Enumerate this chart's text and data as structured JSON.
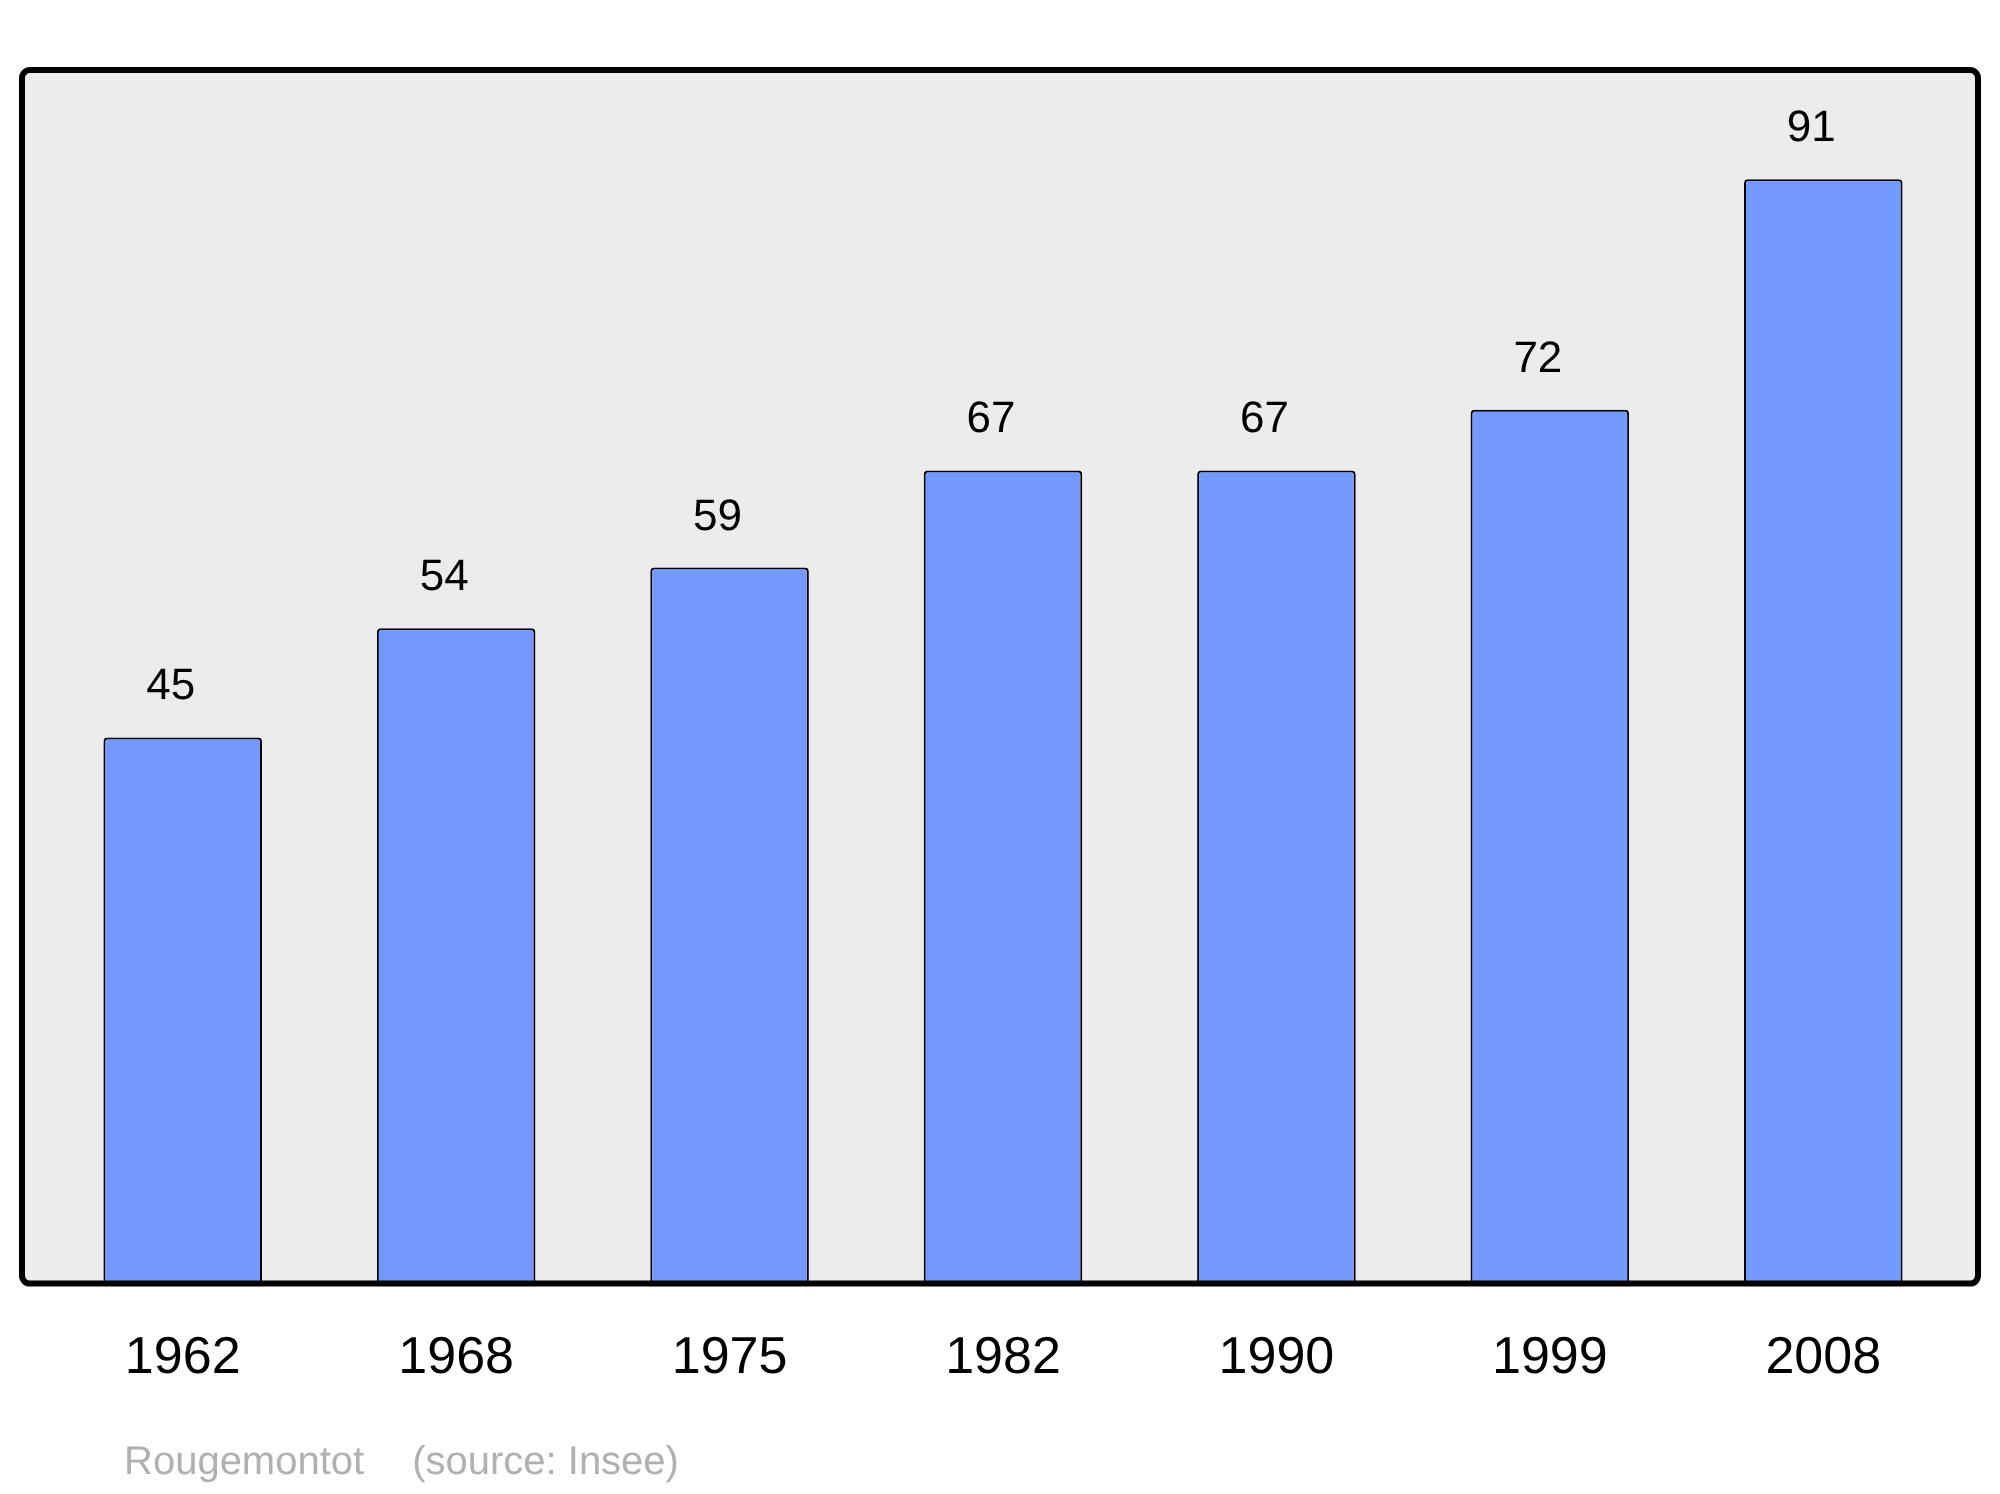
{
  "chart_data": {
    "type": "bar",
    "categories": [
      "1962",
      "1968",
      "1975",
      "1982",
      "1990",
      "1999",
      "2008"
    ],
    "values": [
      45,
      54,
      59,
      67,
      67,
      72,
      91
    ],
    "color": "#7399ff",
    "data_labels": true,
    "ylim": [
      0,
      100
    ],
    "annotations": [
      "Rougemontot",
      "(source: Insee)"
    ]
  }
}
